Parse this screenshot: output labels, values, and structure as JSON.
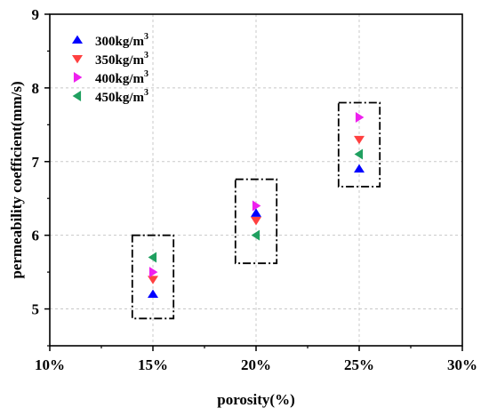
{
  "chart_data": {
    "type": "scatter",
    "xlabel": "porosity(%)",
    "ylabel": "permeability coefficient(mm/s)",
    "xlim": [
      10,
      30
    ],
    "ylim": [
      4.5,
      9
    ],
    "x_ticks": [
      10,
      15,
      20,
      25,
      30
    ],
    "x_tick_labels": [
      "10%",
      "15%",
      "20%",
      "25%",
      "30%"
    ],
    "y_ticks": [
      5,
      6,
      7,
      8,
      9
    ],
    "y_tick_labels": [
      "5",
      "6",
      "7",
      "8",
      "9"
    ],
    "grid": true,
    "legend_position": "top-left",
    "series": [
      {
        "name": "300kg/m³",
        "base": "300kg/m",
        "sup": "3",
        "marker": "triangle-up",
        "color": "#0000ff",
        "points": [
          {
            "x": 15,
            "y": 5.2
          },
          {
            "x": 20,
            "y": 6.3
          },
          {
            "x": 25,
            "y": 6.9
          }
        ]
      },
      {
        "name": "350kg/m³",
        "base": "350kg/m",
        "sup": "3",
        "marker": "triangle-down",
        "color": "#ff4040",
        "points": [
          {
            "x": 15,
            "y": 5.4
          },
          {
            "x": 20,
            "y": 6.2
          },
          {
            "x": 25,
            "y": 7.3
          }
        ]
      },
      {
        "name": "400kg/m³",
        "base": "400kg/m",
        "sup": "3",
        "marker": "triangle-right",
        "color": "#ee20ee",
        "points": [
          {
            "x": 15,
            "y": 5.5
          },
          {
            "x": 20,
            "y": 6.4
          },
          {
            "x": 25,
            "y": 7.6
          }
        ]
      },
      {
        "name": "450kg/m³",
        "base": "450kg/m",
        "sup": "3",
        "marker": "triangle-left",
        "color": "#20a060",
        "points": [
          {
            "x": 15,
            "y": 5.7
          },
          {
            "x": 20,
            "y": 6.0
          },
          {
            "x": 25,
            "y": 7.1
          }
        ]
      }
    ],
    "annotations": [
      {
        "type": "dash-dot-box",
        "x": [
          14.0,
          16.0
        ],
        "y": [
          4.87,
          6.0
        ]
      },
      {
        "type": "dash-dot-box",
        "x": [
          19.0,
          21.0
        ],
        "y": [
          5.62,
          6.76
        ]
      },
      {
        "type": "dash-dot-box",
        "x": [
          24.0,
          26.0
        ],
        "y": [
          6.66,
          7.8
        ]
      }
    ]
  }
}
